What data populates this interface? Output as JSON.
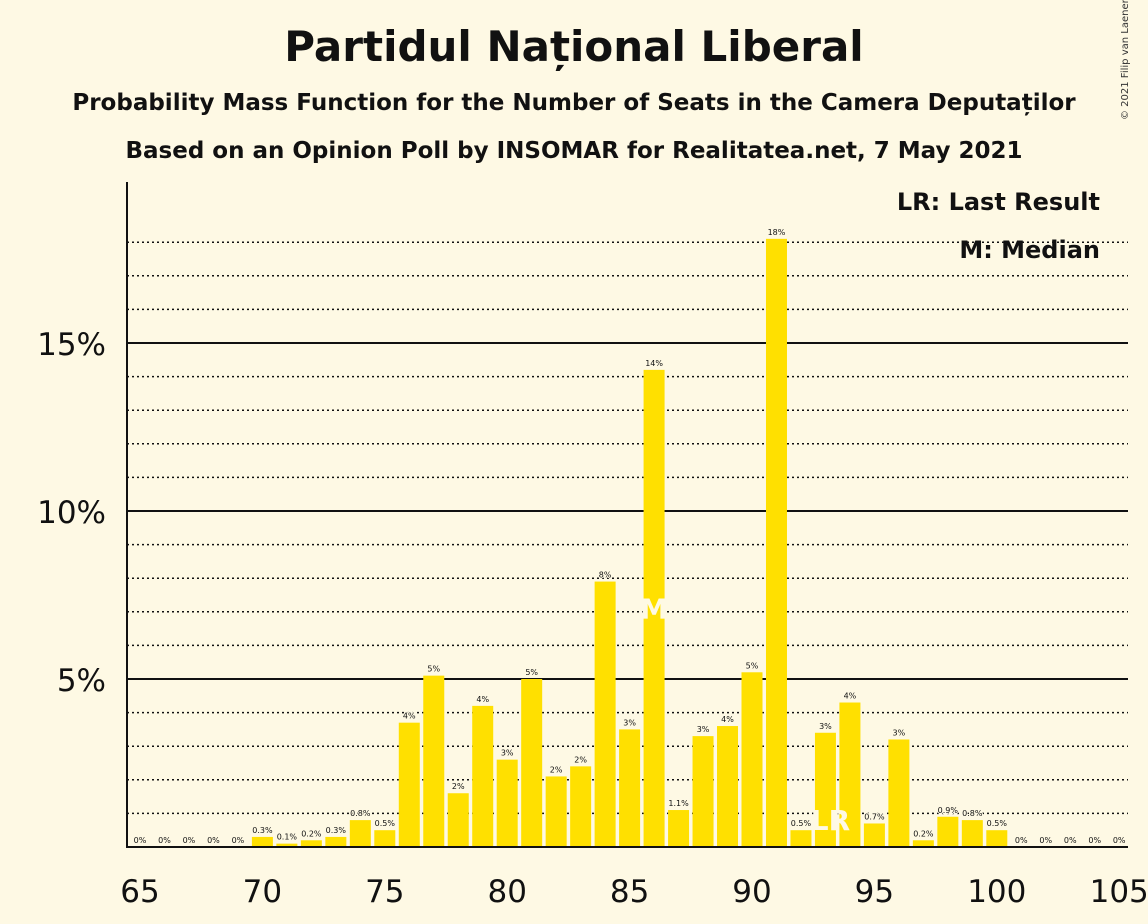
{
  "title": "Partidul Național Liberal",
  "subtitle": "Probability Mass Function for the Number of Seats in the Camera Deputaților",
  "source": "Based on an Opinion Poll by INSOMAR for Realitatea.net, 7 May 2021",
  "copyright": "© 2021 Filip van Laenen",
  "legend": {
    "lr": "LR: Last Result",
    "m": "M: Median"
  },
  "colors": {
    "bar": "#ffe000",
    "background": "#fef9e4",
    "text": "#111111",
    "marker": "#fef9e4"
  },
  "chart_data": {
    "type": "bar",
    "x": [
      65,
      66,
      67,
      68,
      69,
      70,
      71,
      72,
      73,
      74,
      75,
      76,
      77,
      78,
      79,
      80,
      81,
      82,
      83,
      84,
      85,
      86,
      87,
      88,
      89,
      90,
      91,
      92,
      93,
      94,
      95,
      96,
      97,
      98,
      99,
      100,
      101,
      102,
      103,
      104,
      105
    ],
    "values": [
      0,
      0,
      0,
      0,
      0,
      0.3,
      0.1,
      0.2,
      0.3,
      0.8,
      0.5,
      3.7,
      5.1,
      1.6,
      4.2,
      2.6,
      5.0,
      2.1,
      2.4,
      7.9,
      3.5,
      14.2,
      1.1,
      3.3,
      3.6,
      5.2,
      18.1,
      0.5,
      3.4,
      4.3,
      0.7,
      3.2,
      0.2,
      0.9,
      0.8,
      0.5,
      0,
      0,
      0,
      0,
      0
    ],
    "data_labels": [
      "0%",
      "0%",
      "0%",
      "0%",
      "0%",
      "0.3%",
      "0.1%",
      "0.2%",
      "0.3%",
      "0.8%",
      "0.5%",
      "4%",
      "5%",
      "2%",
      "4%",
      "3%",
      "5%",
      "2%",
      "2%",
      "8%",
      "3%",
      "14%",
      "1.1%",
      "3%",
      "4%",
      "5%",
      "18%",
      "0.5%",
      "3%",
      "4%",
      "0.7%",
      "3%",
      "0.2%",
      "0.9%",
      "0.8%",
      "0.5%",
      "0%",
      "0%",
      "0%",
      "0%",
      "0%"
    ],
    "x_ticks": [
      "65",
      "70",
      "75",
      "80",
      "85",
      "90",
      "95",
      "100",
      "105"
    ],
    "y_ticks": [
      "5%",
      "10%",
      "15%"
    ],
    "ylim": [
      0,
      19
    ],
    "xlim": [
      65,
      105
    ],
    "median_seat": 86,
    "median_label": "M",
    "last_result_seat": 93,
    "last_result_label": "LR",
    "grid": true,
    "legend_position": "top-right"
  }
}
